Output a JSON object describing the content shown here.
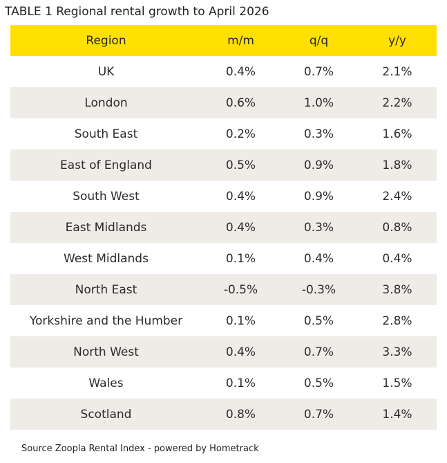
{
  "title": "TABLE 1 Regional rental growth to April 2026",
  "table": {
    "headers": {
      "region": "Region",
      "mm": "m/m",
      "qq": "q/q",
      "yy": "y/y"
    },
    "rows": [
      {
        "region": "UK",
        "mm": "0.4%",
        "qq": "0.7%",
        "yy": "2.1%"
      },
      {
        "region": "London",
        "mm": "0.6%",
        "qq": "1.0%",
        "yy": "2.2%"
      },
      {
        "region": "South East",
        "mm": "0.2%",
        "qq": "0.3%",
        "yy": "1.6%"
      },
      {
        "region": "East of England",
        "mm": "0.5%",
        "qq": "0.9%",
        "yy": "1.8%"
      },
      {
        "region": "South West",
        "mm": "0.4%",
        "qq": "0.9%",
        "yy": "2.4%"
      },
      {
        "region": "East Midlands",
        "mm": "0.4%",
        "qq": "0.3%",
        "yy": "0.8%"
      },
      {
        "region": "West Midlands",
        "mm": "0.1%",
        "qq": "0.4%",
        "yy": "0.4%"
      },
      {
        "region": "North East",
        "mm": "-0.5%",
        "qq": "-0.3%",
        "yy": "3.8%"
      },
      {
        "region": "Yorkshire and the Humber",
        "mm": "0.1%",
        "qq": "0.5%",
        "yy": "2.8%"
      },
      {
        "region": "North West",
        "mm": "0.4%",
        "qq": "0.7%",
        "yy": "3.3%"
      },
      {
        "region": "Wales",
        "mm": "0.1%",
        "qq": "0.5%",
        "yy": "1.5%"
      },
      {
        "region": "Scotland",
        "mm": "0.8%",
        "qq": "0.7%",
        "yy": "1.4%"
      }
    ]
  },
  "source": "Source Zoopla Rental Index - powered by Hometrack",
  "colors": {
    "header_background": "#ffe000",
    "stripe_background": "#efebe6"
  }
}
